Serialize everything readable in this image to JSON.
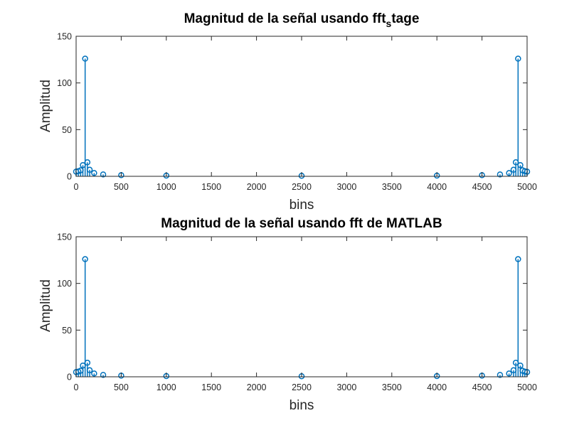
{
  "figure": {
    "background": "#ffffff"
  },
  "colors": {
    "series": "#0072bd",
    "axis": "#262626"
  },
  "chart_data": [
    {
      "type": "stem",
      "title": "Magnitud de la señal usando fft",
      "title_subscript": "s",
      "title_suffix": "tage",
      "xlabel": "bins",
      "ylabel": "Amplitud",
      "xlim": [
        0,
        5000
      ],
      "ylim": [
        0,
        150
      ],
      "xticks": [
        0,
        500,
        1000,
        1500,
        2000,
        2500,
        3000,
        3500,
        4000,
        4500,
        5000
      ],
      "yticks": [
        0,
        50,
        100,
        150
      ],
      "grid": false,
      "marker": "circle",
      "series": [
        {
          "values": [
            [
              0,
              5
            ],
            [
              25,
              5.5
            ],
            [
              50,
              6.5
            ],
            [
              75,
              12
            ],
            [
              100,
              126
            ],
            [
              125,
              15
            ],
            [
              150,
              7
            ],
            [
              200,
              3.5
            ],
            [
              300,
              2
            ],
            [
              500,
              1.2
            ],
            [
              1000,
              0.8
            ],
            [
              2500,
              0.6
            ],
            [
              4000,
              0.8
            ],
            [
              4500,
              1.2
            ],
            [
              4700,
              2
            ],
            [
              4800,
              3.5
            ],
            [
              4850,
              7
            ],
            [
              4875,
              15
            ],
            [
              4900,
              126
            ],
            [
              4925,
              12
            ],
            [
              4950,
              6.5
            ],
            [
              4975,
              5.5
            ],
            [
              5000,
              5
            ]
          ]
        }
      ]
    },
    {
      "type": "stem",
      "title": "Magnitud de la señal usando fft de MATLAB",
      "xlabel": "bins",
      "ylabel": "Amplitud",
      "xlim": [
        0,
        5000
      ],
      "ylim": [
        0,
        150
      ],
      "xticks": [
        0,
        500,
        1000,
        1500,
        2000,
        2500,
        3000,
        3500,
        4000,
        4500,
        5000
      ],
      "yticks": [
        0,
        50,
        100,
        150
      ],
      "grid": false,
      "marker": "circle",
      "series": [
        {
          "values": [
            [
              0,
              5
            ],
            [
              25,
              5.5
            ],
            [
              50,
              6.5
            ],
            [
              75,
              12
            ],
            [
              100,
              126
            ],
            [
              125,
              15
            ],
            [
              150,
              7
            ],
            [
              200,
              3.5
            ],
            [
              300,
              2
            ],
            [
              500,
              1.2
            ],
            [
              1000,
              0.8
            ],
            [
              2500,
              0.6
            ],
            [
              4000,
              0.8
            ],
            [
              4500,
              1.2
            ],
            [
              4700,
              2
            ],
            [
              4800,
              3.5
            ],
            [
              4850,
              7
            ],
            [
              4875,
              15
            ],
            [
              4900,
              126
            ],
            [
              4925,
              12
            ],
            [
              4950,
              6.5
            ],
            [
              4975,
              5.5
            ],
            [
              5000,
              5
            ]
          ]
        }
      ]
    }
  ]
}
